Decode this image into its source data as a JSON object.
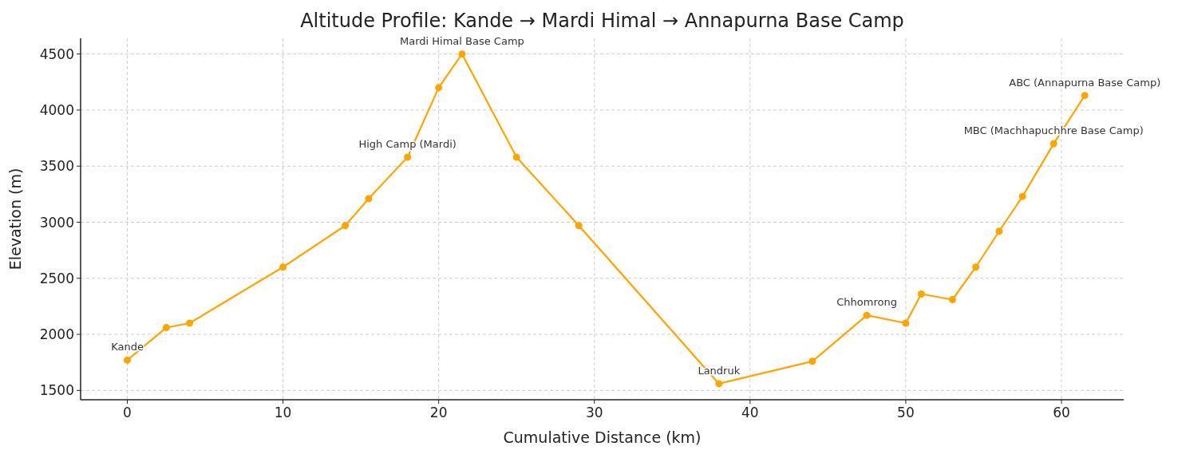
{
  "chart_data": {
    "type": "line",
    "title": "Altitude Profile: Kande → Mardi Himal → Annapurna Base Camp",
    "xlabel": "Cumulative Distance (km)",
    "ylabel": "Elevation (m)",
    "x": [
      0,
      2.5,
      4,
      10,
      14,
      15.5,
      18,
      20,
      21.5,
      25,
      29,
      38,
      44,
      47.5,
      50,
      51,
      53,
      54.5,
      56,
      57.5,
      59.5,
      61.5
    ],
    "series": [
      {
        "color": "#ffa500",
        "values": [
          1770,
          2060,
          2100,
          2600,
          2970,
          3210,
          3580,
          4200,
          4500,
          3580,
          2970,
          1560,
          1760,
          2170,
          2100,
          2360,
          2310,
          2600,
          2920,
          3230,
          3700,
          4130
        ]
      }
    ],
    "xlim": [
      -3,
      64
    ],
    "ylim": [
      1417,
      4640
    ],
    "xticks": [
      0,
      10,
      20,
      30,
      40,
      50,
      60
    ],
    "yticks": [
      1500,
      2000,
      2500,
      3000,
      3500,
      4000,
      4500
    ],
    "grid": true,
    "marker": "circle",
    "line_style": "solid",
    "annotations": [
      {
        "text": "Kande",
        "x": 0,
        "y": 1770
      },
      {
        "text": "High Camp (Mardi)",
        "x": 18,
        "y": 3580
      },
      {
        "text": "Mardi Himal Base Camp",
        "x": 21.5,
        "y": 4500
      },
      {
        "text": "Landruk",
        "x": 38,
        "y": 1560
      },
      {
        "text": "Chhomrong",
        "x": 47.5,
        "y": 2170
      },
      {
        "text": "MBC (Machhapuchhre Base Camp)",
        "x": 59.5,
        "y": 3700
      },
      {
        "text": "ABC (Annapurna Base Camp)",
        "x": 61.5,
        "y": 4130
      }
    ]
  }
}
